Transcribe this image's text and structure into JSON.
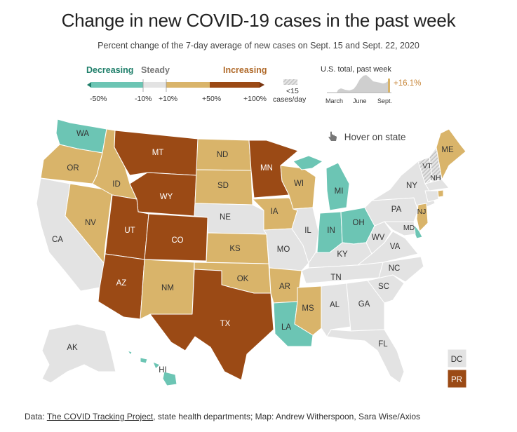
{
  "title": "Change in new COVID-19 cases in the past week",
  "subtitle": "Percent change of the 7-day average of new cases on Sept. 15 and Sept. 22, 2020",
  "legend": {
    "decreasing": "Decreasing",
    "steady": "Steady",
    "increasing": "Increasing",
    "ticks": [
      "-50%",
      "-10%",
      "+10%",
      "+50%",
      "+100%"
    ],
    "under15_a": "<15",
    "under15_b": "cases/day",
    "colors": {
      "decreasing": "#6cc5b4",
      "steady": "#e3e3e3",
      "increasing_mid": "#d9b46a",
      "increasing_high": "#9b4a15",
      "low": "#1f7f6a"
    }
  },
  "inset": {
    "label": "U.S. total, past week",
    "value": "+16.1%",
    "months": [
      "March",
      "June",
      "Sept."
    ]
  },
  "hover_hint": "Hover on state",
  "states": {
    "WA": "WA",
    "OR": "OR",
    "CA": "CA",
    "NV": "NV",
    "ID": "ID",
    "MT": "MT",
    "WY": "WY",
    "UT": "UT",
    "CO": "CO",
    "AZ": "AZ",
    "NM": "NM",
    "ND": "ND",
    "SD": "SD",
    "NE": "NE",
    "KS": "KS",
    "OK": "OK",
    "TX": "TX",
    "MN": "MN",
    "IA": "IA",
    "MO": "MO",
    "AR": "AR",
    "LA": "LA",
    "WI": "WI",
    "IL": "IL",
    "MI": "MI",
    "IN": "IN",
    "OH": "OH",
    "KY": "KY",
    "TN": "TN",
    "MS": "MS",
    "AL": "AL",
    "GA": "GA",
    "FL": "FL",
    "SC": "SC",
    "NC": "NC",
    "VA": "VA",
    "WV": "WV",
    "PA": "PA",
    "NY": "NY",
    "VT": "VT",
    "NH": "NH",
    "ME": "ME",
    "MD": "MD",
    "NJ": "NJ",
    "AK": "AK",
    "HI": "HI",
    "DC": "DC",
    "PR": "PR"
  },
  "source": {
    "prefix": "Data: ",
    "link": "The COVID Tracking Project",
    "rest": ", state health departments; Map: Andrew Witherspoon, Sara Wise/Axios"
  }
}
